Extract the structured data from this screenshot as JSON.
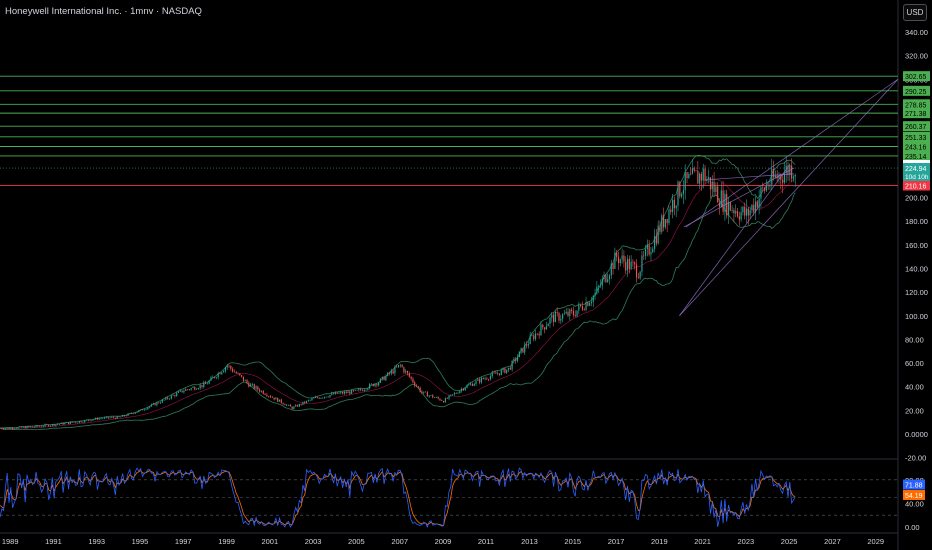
{
  "header": {
    "symbol_title": "Honeywell International Inc. · 1mnv · NASDAQ",
    "currency_button": "USD"
  },
  "colors": {
    "background": "#000000",
    "candle_up": "#26a69a",
    "candle_down": "#ef5350",
    "bollinger": "#2e7d5b",
    "bollinger_mid": "#c2185b",
    "channel": "#9575cd",
    "fib_line": "#4caf50",
    "support_line": "#f23645",
    "rsi_k": "#2962ff",
    "rsi_d": "#ff6d00"
  },
  "chart_data": [
    {
      "type": "candlestick",
      "title": "Honeywell International Inc. · 1mnv · NASDAQ",
      "x_ticks": [
        "1989",
        "1991",
        "1993",
        "1995",
        "1997",
        "1999",
        "2001",
        "2003",
        "2005",
        "2007",
        "2009",
        "2011",
        "2013",
        "2015",
        "2017",
        "2019",
        "2021",
        "2023",
        "2025",
        "2027",
        "2029"
      ],
      "y_ticks": [
        "340.00",
        "320.00",
        "300.00",
        "280.00",
        "260.00",
        "240.00",
        "220.00",
        "200.00",
        "180.00",
        "160.00",
        "140.00",
        "120.00",
        "100.00",
        "80.00",
        "60.00",
        "40.00",
        "20.00",
        "0.0000",
        "-20.00"
      ],
      "ylim": [
        -20,
        340
      ],
      "xlim": [
        1988.5,
        2030
      ],
      "price_series": {
        "name": "close",
        "x": [
          1989,
          1990,
          1991,
          1992,
          1993,
          1994,
          1995,
          1996,
          1997,
          1998,
          1999,
          2000,
          2001,
          2002,
          2003,
          2004,
          2005,
          2006,
          2007,
          2008,
          2009,
          2010,
          2011,
          2012,
          2013,
          2014,
          2015,
          2016,
          2017,
          2018,
          2019,
          2020,
          2021,
          2022,
          2023,
          2024,
          2025
        ],
        "y": [
          5,
          6,
          8,
          10,
          13,
          14,
          20,
          28,
          37,
          42,
          58,
          42,
          32,
          22,
          30,
          34,
          36,
          44,
          58,
          35,
          28,
          40,
          48,
          55,
          80,
          98,
          102,
          118,
          150,
          138,
          175,
          210,
          220,
          195,
          185,
          212,
          225
        ]
      },
      "horizontal_levels": [
        {
          "value": 302.65,
          "label": "302.65",
          "kind": "fib"
        },
        {
          "value": 290.25,
          "label": "290.25",
          "kind": "fib"
        },
        {
          "value": 278.85,
          "label": "278.85",
          "kind": "fib"
        },
        {
          "value": 271.38,
          "label": "271.38",
          "kind": "fib"
        },
        {
          "value": 260.37,
          "label": "260.37",
          "kind": "fib"
        },
        {
          "value": 251.33,
          "label": "251.33",
          "kind": "fib"
        },
        {
          "value": 243.16,
          "label": "243.16",
          "kind": "fib"
        },
        {
          "value": 235.14,
          "label": "235.14",
          "kind": "fib"
        },
        {
          "value": 227.51,
          "label": "227.51",
          "kind": "white"
        },
        {
          "value": 210.16,
          "label": "210.16",
          "kind": "support"
        }
      ],
      "current_price": {
        "value": 224.94,
        "label": "224.94",
        "countdown": "10d 10h"
      }
    },
    {
      "type": "line",
      "title": "",
      "y_ticks": [
        "80.00",
        "40.00",
        "0.00"
      ],
      "ylim": [
        0,
        100
      ],
      "series": [
        {
          "values_label": "71.88",
          "value": 71.88
        },
        {
          "values_label": "54.19",
          "value": 54.19
        }
      ],
      "bands": [
        80,
        50,
        20
      ]
    }
  ]
}
